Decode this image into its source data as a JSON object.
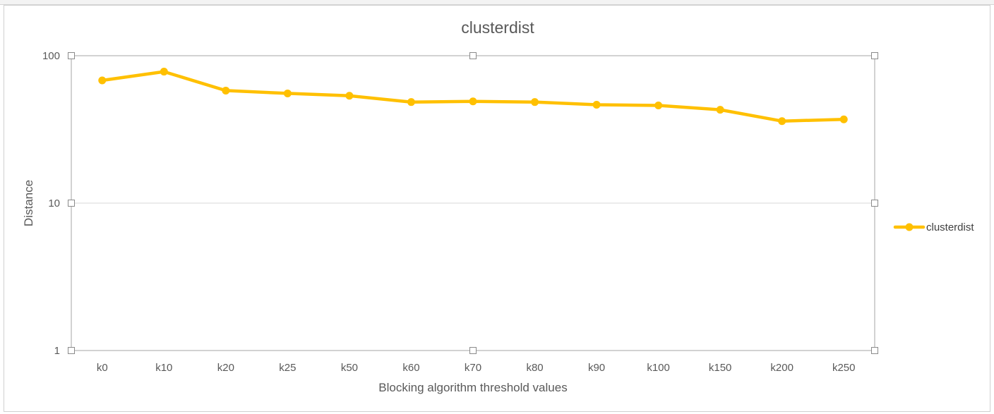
{
  "chart_data": {
    "type": "line",
    "title": "clusterdist",
    "xlabel": "Blocking algorithm threshold values",
    "ylabel": "Distance",
    "yscale": "log",
    "ylim": [
      1,
      100
    ],
    "yticks": [
      {
        "value": 1,
        "label": "1"
      },
      {
        "value": 10,
        "label": "10"
      },
      {
        "value": 100,
        "label": "100"
      }
    ],
    "categories": [
      "k0",
      "k10",
      "k20",
      "k25",
      "k50",
      "k60",
      "k70",
      "k80",
      "k90",
      "k100",
      "k150",
      "k200",
      "k250"
    ],
    "series": [
      {
        "name": "clusterdist",
        "color": "#FFC000",
        "values": [
          68,
          78,
          58,
          55.5,
          53.5,
          48.5,
          49,
          48.5,
          46.5,
          46,
          43,
          36,
          37
        ]
      }
    ],
    "grid": true,
    "legend": "right"
  }
}
